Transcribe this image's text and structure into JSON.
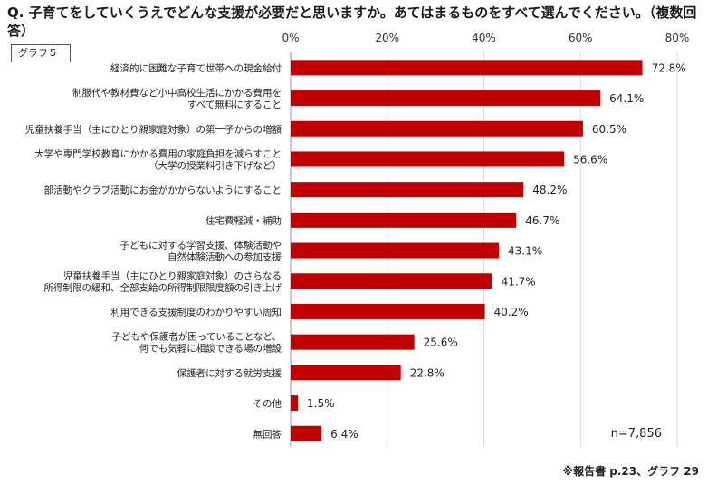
{
  "question": "Q. 子育てをしていくうえでどんな支援が必要だと思いますか。あてはまるものをすべて選んでください。（複数回答）",
  "badge": "グラフ５",
  "note": "n=7,856",
  "source": "※報告書 p.23、グラフ 29",
  "colors": {
    "bar": "#c00000",
    "grid": "#d9d9d9"
  },
  "chart_data": {
    "type": "bar",
    "orientation": "horizontal",
    "xlim": [
      0,
      80
    ],
    "ticks": [
      "0%",
      "20%",
      "40%",
      "60%",
      "80%"
    ],
    "tick_values": [
      0,
      20,
      40,
      60,
      80
    ],
    "grid": true,
    "categories": [
      [
        "経済的に困難な子育て世帯への現金給付"
      ],
      [
        "制服代や教材費など小中高校生活にかかる費用を",
        "すべて無料にすること"
      ],
      [
        "児童扶養手当（主にひとり親家庭対象）の第一子からの増額"
      ],
      [
        "大学や専門学校教育にかかる費用の家庭負担を減らすこと",
        "（大学の授業料引き下げなど）"
      ],
      [
        "部活動やクラブ活動にお金がかからないようにすること"
      ],
      [
        "住宅費軽減・補助"
      ],
      [
        "子どもに対する学習支援、体験活動や",
        "自然体験活動への参加支援"
      ],
      [
        "児童扶養手当（主にひとり親家庭対象）のさらなる",
        "所得制限の緩和、全部支給の所得制限限度額の引き上げ"
      ],
      [
        "利用できる支援制度のわかりやすい周知"
      ],
      [
        "子どもや保護者が困っていることなど、",
        "何でも気軽に相談できる場の増設"
      ],
      [
        "保護者に対する就労支援"
      ],
      [
        "その他"
      ],
      [
        "無回答"
      ]
    ],
    "values": [
      72.8,
      64.1,
      60.5,
      56.6,
      48.2,
      46.7,
      43.1,
      41.7,
      40.2,
      25.6,
      22.8,
      1.5,
      6.4
    ],
    "labels": [
      "72.8%",
      "64.1%",
      "60.5%",
      "56.6%",
      "48.2%",
      "46.7%",
      "43.1%",
      "41.7%",
      "40.2%",
      "25.6%",
      "22.8%",
      "1.5%",
      "6.4%"
    ]
  }
}
